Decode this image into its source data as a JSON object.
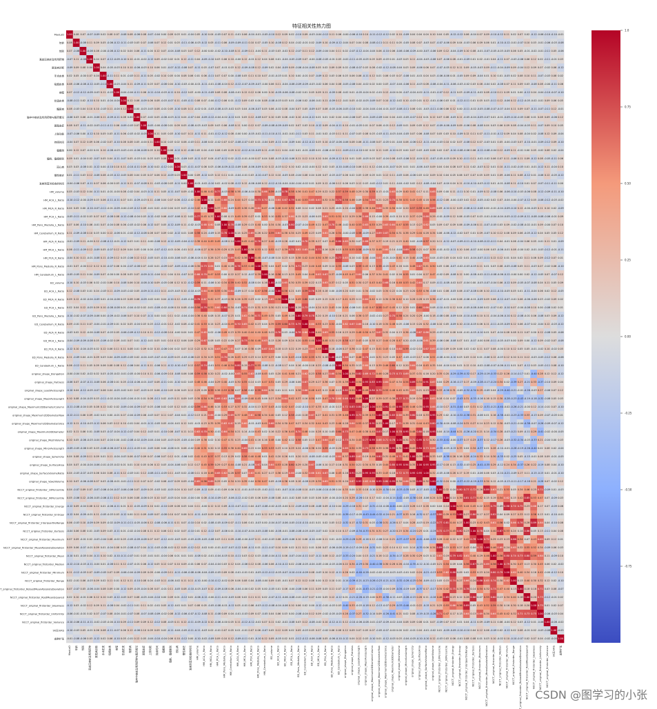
{
  "chart_data": {
    "type": "heatmap",
    "title": "特征相关性热力图",
    "labels": [
      "MaxLoD",
      "年龄",
      "性别",
      "高血压病史及所用药物",
      "原发病诊断",
      "手术史类",
      "吸烟史类",
      "病程",
      "饮酒史类",
      "糖尿病",
      "脑卒中病史及所用药物与服药情况",
      "高脂血症",
      "上肢功能",
      "持续时间",
      "偏瘫侧",
      "偏侧、偏瘫侧别",
      "冠心病",
      "慢性病史",
      "发病到首次检查的时间",
      "HM_volume",
      "HM_ACA_L_Ratio",
      "HM_MCA_R_Ratio",
      "HM_PCA_L_Ratio",
      "HM_Pons_Medulla_L_Ratio",
      "HM_Cerebellum_R_Ratio",
      "HM_ACA_R_Ratio",
      "HM_MCA_L_Ratio",
      "HM_PCA_R_Ratio",
      "HM_Pons_Medulla_R_Ratio",
      "HM_Cerebellum_L_Ratio",
      "ED_volume",
      "ED_ACA_L_Ratio",
      "ED_MCA_R_Ratio",
      "ED_PCA_L_Ratio",
      "ED_Pons_Medulla_L_Ratio",
      "ED_Cerebellum_R_Ratio",
      "ED_ACA_R_Ratio",
      "ED_MCA_L_Ratio",
      "ED_PCA_R_Ratio",
      "ED_Pons_Medulla_R_Ratio",
      "ED_Cerebellum_L_Ratio",
      "original_shape_Elongation",
      "original_shape_Flatness",
      "original_shape_LeastAxisLength",
      "original_shape_MajorAxisLength",
      "original_shape_Maximum2DDiameterColumn",
      "original_shape_Maximum2DDiameterRow",
      "original_shape_Maximum2DDiameterSlice",
      "original_shape_Maximum3DDiameter",
      "original_shape_MeshVolume",
      "original_shape_MinorAxisLength",
      "original_shape_Sphericity",
      "original_shape_SurfaceArea",
      "original_shape_SurfaceVolumeRatio",
      "original_shape_VoxelVolume",
      "NCCT_original_firstorder_10Percentile",
      "NCCT_original_firstorder_90Percentile",
      "NCCT_original_firstorder_Energy",
      "NCCT_original_firstorder_Entropy",
      "NCCT_original_firstorder_InterquartileRange",
      "NCCT_original_firstorder_Kurtosis",
      "NCCT_original_firstorder_Maximum",
      "NCCT_original_firstorder_MeanAbsoluteDeviation",
      "NCCT_original_firstorder_Mean",
      "NCCT_original_firstorder_Median",
      "NCCT_original_firstorder_Minimum",
      "NCCT_original_firstorder_Range",
      "NCCT_original_firstorder_RobustMeanAbsoluteDeviation",
      "NCCT_original_firstorder_RootMeanSquared",
      "NCCT_original_firstorder_Skewness",
      "NCCT_original_firstorder_Uniformity",
      "NCCT_original_firstorder_Variance",
      "90天mRS",
      "血肿扩张"
    ],
    "value_range": [
      -1,
      1
    ],
    "colormap": "coolwarm",
    "annotated": true,
    "annotation_format": "0.00",
    "colorbar": {
      "ticks": [
        1.0,
        0.75,
        0.5,
        0.25,
        0.0,
        -0.25,
        -0.5,
        -0.75
      ],
      "tick_labels": [
        "1.0",
        "0.75",
        "0.50",
        "0.25",
        "0.00",
        "-0.25",
        "-0.50",
        "-0.75"
      ]
    },
    "cluster_blocks": [
      {
        "from": 19,
        "to": 40,
        "base": 0.35
      },
      {
        "from": 41,
        "to": 54,
        "base": 0.6
      },
      {
        "from": 55,
        "to": 70,
        "base": 0.45
      }
    ],
    "cross_blocks": [
      {
        "rows": [
          19,
          40
        ],
        "cols": [
          41,
          54
        ],
        "base": 0.3
      },
      {
        "rows": [
          41,
          54
        ],
        "cols": [
          55,
          70
        ],
        "base": -0.05
      }
    ],
    "seed": 20240517
  },
  "watermark": "CSDN @图学习的小张"
}
